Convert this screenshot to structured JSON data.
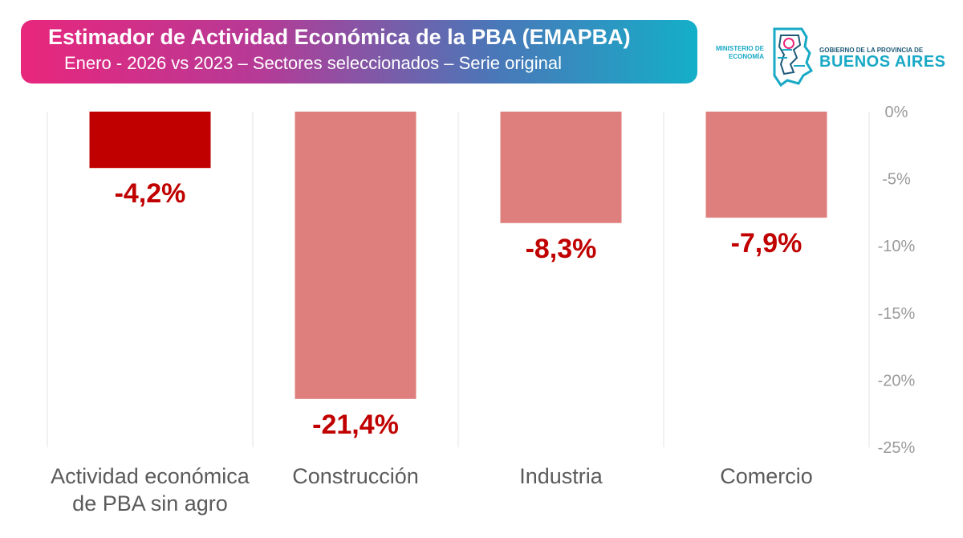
{
  "header": {
    "title": "Estimador de Actividad Económica de la PBA (EMAPBA)",
    "subtitle": "Enero - 2026 vs 2023 – Sectores seleccionados – Serie original"
  },
  "logo": {
    "ministerio_line1": "MINISTERIO DE",
    "ministerio_line2": "ECONOMÍA",
    "gobierno": "GOBIERNO DE LA PROVINCIA DE",
    "provincia": "BUENOS AIRES"
  },
  "colors": {
    "highlight_bar": "#c00000",
    "bar": "#df7f7d",
    "label": "#c00000",
    "grid": "#e3e3e3",
    "tick": "#9a9a9a"
  },
  "chart_data": {
    "type": "bar",
    "title": "Estimador de Actividad Económica de la PBA (EMAPBA)",
    "subtitle": "Enero - 2026 vs 2023 – Sectores seleccionados – Serie original",
    "categories": [
      "Actividad económica de PBA sin agro",
      "Construcción",
      "Industria",
      "Comercio"
    ],
    "category_lines": [
      [
        "Actividad económica",
        "de PBA sin agro"
      ],
      [
        "Construcción"
      ],
      [
        "Industria"
      ],
      [
        "Comercio"
      ]
    ],
    "values": [
      -4.2,
      -21.4,
      -8.3,
      -7.9
    ],
    "data_labels": [
      "-4,2%",
      "-21,4%",
      "-8,3%",
      "-7,9%"
    ],
    "highlight_index": 0,
    "ylim": [
      -25,
      0
    ],
    "yticks": [
      0,
      -5,
      -10,
      -15,
      -20,
      -25
    ],
    "ytick_labels": [
      "0%",
      "-5%",
      "-10%",
      "-15%",
      "-20%",
      "-25%"
    ],
    "y_axis_side": "right",
    "xlabel": "",
    "ylabel": "",
    "legend": "none"
  }
}
